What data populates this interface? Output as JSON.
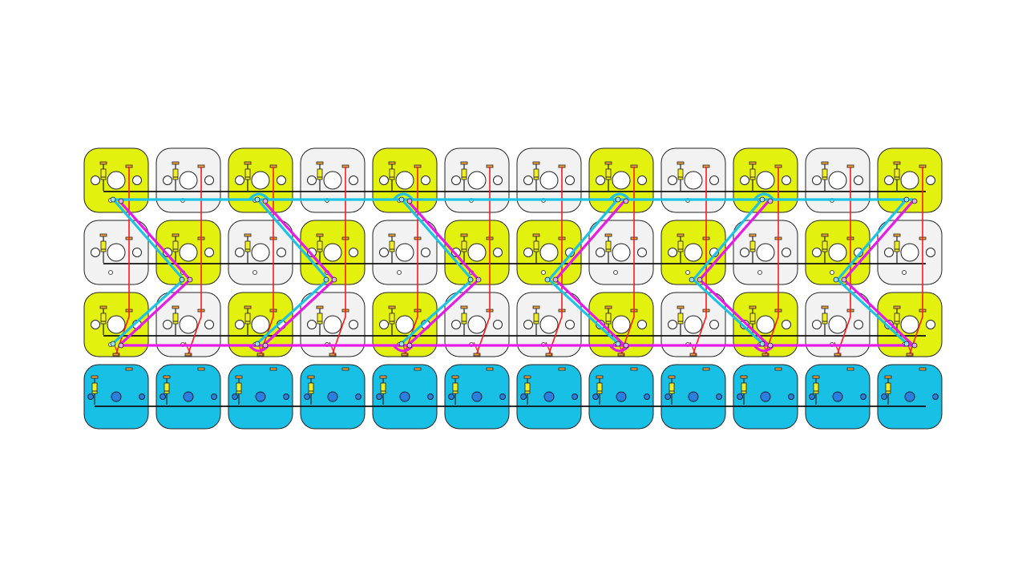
{
  "board": {
    "columns": 12,
    "rows": [
      {
        "name": "row-1",
        "keys": [
          "yellow",
          "white",
          "yellow",
          "white",
          "yellow",
          "white",
          "white",
          "yellow",
          "white",
          "yellow",
          "white",
          "yellow"
        ]
      },
      {
        "name": "row-2",
        "keys": [
          "white",
          "yellow",
          "white",
          "yellow",
          "white",
          "yellow",
          "yellow",
          "white",
          "yellow",
          "white",
          "yellow",
          "white"
        ]
      },
      {
        "name": "row-3",
        "keys": [
          "yellow",
          "white",
          "yellow",
          "white",
          "yellow",
          "white",
          "white",
          "yellow",
          "white",
          "yellow",
          "white",
          "yellow"
        ]
      },
      {
        "name": "row-4",
        "keys": [
          "blue",
          "blue",
          "blue",
          "blue",
          "blue",
          "blue",
          "blue",
          "blue",
          "blue",
          "blue",
          "blue",
          "blue"
        ]
      }
    ]
  },
  "colors": {
    "yellow": "#e2f10d",
    "white": "#f2f2f2",
    "blue": "#19c0e5",
    "blue_switch": "#2a7fe0",
    "cyan_trace": "#1ec3e3",
    "magenta_trace": "#e51ce6",
    "red_wire": "#ff1a1a",
    "pad": "#f0a23a",
    "diode": "#f1ef22",
    "row_wire": "#111111"
  },
  "icons": {
    "switch": "switch-footprint-icon",
    "diode": "diode-icon",
    "pad": "pad-icon"
  }
}
